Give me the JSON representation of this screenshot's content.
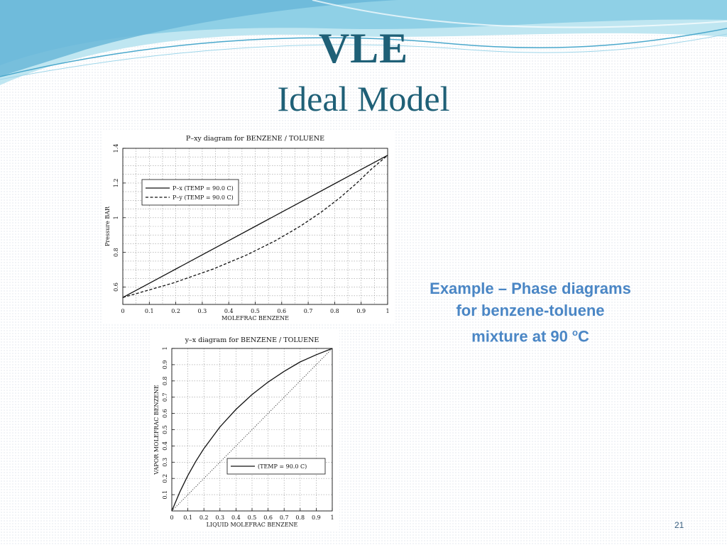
{
  "slide": {
    "title": "VLE",
    "subtitle": "Ideal Model",
    "caption_line1": "Example – Phase diagrams",
    "caption_line2": "for benzene-toluene",
    "caption_line3_prefix": "mixture at 90 ",
    "caption_degree": "o",
    "caption_unit": "C",
    "page_number": "21",
    "accent_color": "#4a86c5",
    "title_color": "#1f6077"
  },
  "chart_data": [
    {
      "type": "line",
      "title": "P–xy diagram for BENZENE / TOLUENE",
      "xlabel": "MOLEFRAC BENZENE",
      "ylabel": "Pressure BAR",
      "xlim": [
        0,
        1
      ],
      "ylim": [
        0.5,
        1.4
      ],
      "xticks": [
        0,
        0.1,
        0.2,
        0.3,
        0.4,
        0.5,
        0.6,
        0.7,
        0.8,
        0.9,
        1
      ],
      "xtick_labels": [
        "0",
        "0.1",
        "0.2",
        "0.3",
        "0.4",
        "0.5",
        "0.6",
        "0.7",
        "0.8",
        "0.9",
        "1"
      ],
      "yticks": [
        0.6,
        0.8,
        1,
        1.2,
        1.4
      ],
      "ytick_labels": [
        "0.6",
        "0.8",
        "1",
        "1.2",
        "1.4"
      ],
      "grid": true,
      "legend_position": "top-left",
      "series": [
        {
          "name": "P–x (TEMP = 90.0 C)",
          "style": "solid",
          "x": [
            0,
            0.1,
            0.2,
            0.3,
            0.4,
            0.5,
            0.6,
            0.7,
            0.8,
            0.9,
            1
          ],
          "y": [
            0.54,
            0.622,
            0.704,
            0.786,
            0.868,
            0.95,
            1.032,
            1.114,
            1.196,
            1.278,
            1.36
          ]
        },
        {
          "name": "P–y (TEMP = 90.0 C)",
          "style": "dashed",
          "x": [
            0,
            0.187,
            0.341,
            0.469,
            0.577,
            0.669,
            0.749,
            0.819,
            0.881,
            0.937,
            1
          ],
          "y": [
            0.54,
            0.622,
            0.704,
            0.786,
            0.868,
            0.95,
            1.032,
            1.114,
            1.196,
            1.278,
            1.36
          ]
        }
      ]
    },
    {
      "type": "line",
      "title": "y–x diagram for BENZENE / TOLUENE",
      "xlabel": "LIQUID MOLEFRAC BENZENE",
      "ylabel": "VAPOR MOLEFRAC BENZENE",
      "xlim": [
        0,
        1
      ],
      "ylim": [
        0,
        1
      ],
      "xticks": [
        0,
        0.1,
        0.2,
        0.3,
        0.4,
        0.5,
        0.6,
        0.7,
        0.8,
        0.9,
        1
      ],
      "xtick_labels": [
        "0",
        "0.1",
        "0.2",
        "0.3",
        "0.4",
        "0.5",
        "0.6",
        "0.7",
        "0.8",
        "0.9",
        "1"
      ],
      "yticks": [
        0.1,
        0.2,
        0.3,
        0.4,
        0.5,
        0.6,
        0.7,
        0.8,
        0.9,
        1
      ],
      "ytick_labels": [
        "0.1",
        "0.2",
        "0.3",
        "0.4",
        "0.5",
        "0.6",
        "0.7",
        "0.8",
        "0.9",
        "1"
      ],
      "grid": true,
      "legend_position": "lower-right",
      "series": [
        {
          "name": "(TEMP = 90.0 C)",
          "style": "solid",
          "x": [
            0,
            0.05,
            0.1,
            0.15,
            0.2,
            0.3,
            0.4,
            0.5,
            0.6,
            0.7,
            0.8,
            0.9,
            1
          ],
          "y": [
            0,
            0.117,
            0.218,
            0.306,
            0.384,
            0.517,
            0.625,
            0.716,
            0.793,
            0.859,
            0.917,
            0.961,
            1
          ]
        },
        {
          "name": "",
          "style": "dotted",
          "x": [
            0,
            1
          ],
          "y": [
            0,
            1
          ]
        }
      ]
    }
  ]
}
